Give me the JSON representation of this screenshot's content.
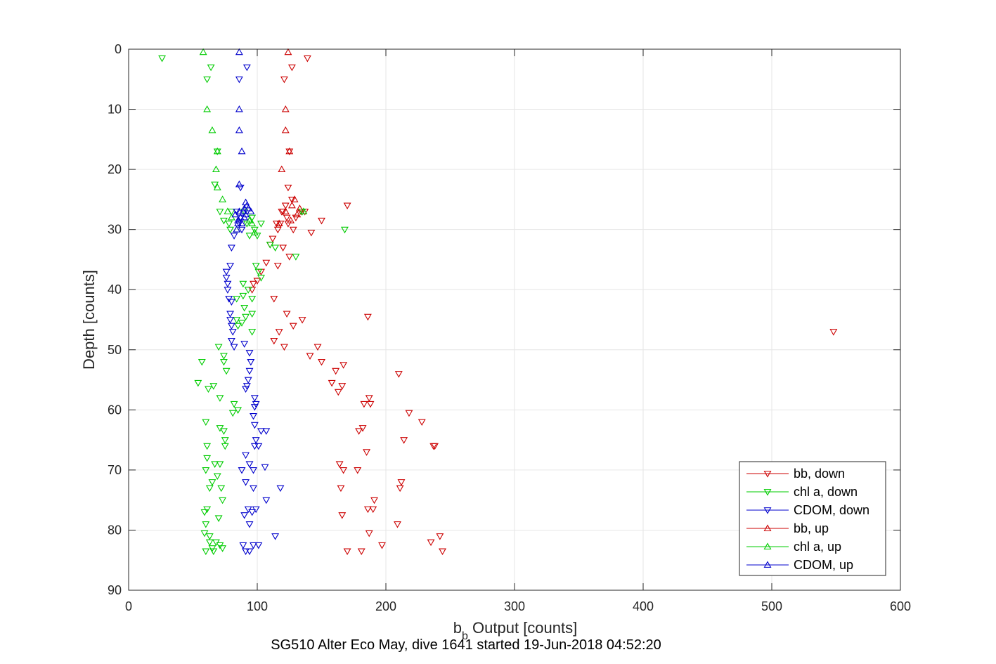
{
  "chart_data": {
    "type": "scatter",
    "title": "SG510 Alter Eco May, dive 1641 started 19-Jun-2018 04:52:20",
    "xlabel_main": "b",
    "xlabel_sub": "b",
    "xlabel_rest": " Output [counts]",
    "ylabel": "Depth [counts]",
    "xlim": [
      0,
      600
    ],
    "ylim": [
      0,
      90
    ],
    "y_reversed": true,
    "xticks": [
      0,
      100,
      200,
      300,
      400,
      500,
      600
    ],
    "yticks": [
      0,
      10,
      20,
      30,
      40,
      50,
      60,
      70,
      80,
      90
    ],
    "grid": true,
    "legend_position": "bottom-right",
    "series": [
      {
        "name": "bb, down",
        "color": "#cc0000",
        "marker": "down",
        "points": [
          [
            139,
            1.5
          ],
          [
            127,
            3
          ],
          [
            121,
            5
          ],
          [
            125,
            17
          ],
          [
            124,
            23
          ],
          [
            170,
            26
          ],
          [
            127,
            25
          ],
          [
            134,
            27
          ],
          [
            137,
            27
          ],
          [
            119,
            27
          ],
          [
            130,
            28
          ],
          [
            123,
            28
          ],
          [
            118,
            29
          ],
          [
            115,
            29
          ],
          [
            116,
            30
          ],
          [
            124,
            29
          ],
          [
            128,
            30
          ],
          [
            142,
            30.5
          ],
          [
            150,
            28.5
          ],
          [
            122,
            26
          ],
          [
            120,
            27
          ],
          [
            112,
            31.5
          ],
          [
            110,
            32.5
          ],
          [
            120,
            33
          ],
          [
            125,
            34.5
          ],
          [
            107,
            35.5
          ],
          [
            116,
            36
          ],
          [
            100,
            38.5
          ],
          [
            103,
            37
          ],
          [
            96,
            40
          ],
          [
            97,
            39
          ],
          [
            113,
            41.5
          ],
          [
            123,
            44
          ],
          [
            135,
            45
          ],
          [
            128,
            46
          ],
          [
            186,
            44.5
          ],
          [
            117,
            47
          ],
          [
            113,
            48.5
          ],
          [
            121,
            49.5
          ],
          [
            147,
            49.5
          ],
          [
            141,
            51
          ],
          [
            150,
            52
          ],
          [
            167,
            52.5
          ],
          [
            210,
            54
          ],
          [
            161,
            53.5
          ],
          [
            158,
            55.5
          ],
          [
            166,
            56
          ],
          [
            163,
            57
          ],
          [
            187,
            58
          ],
          [
            183,
            59
          ],
          [
            188,
            59
          ],
          [
            218,
            60.5
          ],
          [
            228,
            62
          ],
          [
            182,
            63
          ],
          [
            179,
            63.5
          ],
          [
            214,
            65
          ],
          [
            237,
            66
          ],
          [
            238,
            66
          ],
          [
            185,
            67
          ],
          [
            164,
            69
          ],
          [
            167,
            70
          ],
          [
            178,
            70
          ],
          [
            212,
            72
          ],
          [
            211,
            73
          ],
          [
            165,
            73
          ],
          [
            191,
            75
          ],
          [
            190,
            76.5
          ],
          [
            186,
            76.5
          ],
          [
            166,
            77.5
          ],
          [
            209,
            79
          ],
          [
            187,
            80.5
          ],
          [
            242,
            81
          ],
          [
            235,
            82
          ],
          [
            197,
            82.5
          ],
          [
            181,
            83.5
          ],
          [
            170,
            83.5
          ],
          [
            244,
            83.5
          ],
          [
            548,
            47
          ]
        ]
      },
      {
        "name": "chl a, down",
        "color": "#00cc00",
        "marker": "down",
        "points": [
          [
            26,
            1.5
          ],
          [
            64,
            3
          ],
          [
            61,
            5
          ],
          [
            69,
            17
          ],
          [
            67,
            22.5
          ],
          [
            71,
            27
          ],
          [
            74,
            28.5
          ],
          [
            80,
            27
          ],
          [
            78,
            29
          ],
          [
            79,
            30
          ],
          [
            90,
            27
          ],
          [
            96,
            28
          ],
          [
            92,
            29
          ],
          [
            94,
            31
          ],
          [
            98,
            30
          ],
          [
            103,
            29
          ],
          [
            100,
            31
          ],
          [
            110,
            32.5
          ],
          [
            114,
            33
          ],
          [
            130,
            34.5
          ],
          [
            135,
            27
          ],
          [
            168,
            30
          ],
          [
            99,
            36
          ],
          [
            101,
            37
          ],
          [
            103,
            38
          ],
          [
            89,
            39
          ],
          [
            93,
            40
          ],
          [
            84,
            41.5
          ],
          [
            89,
            41
          ],
          [
            96,
            41.5
          ],
          [
            90,
            43
          ],
          [
            96,
            44
          ],
          [
            91,
            44.5
          ],
          [
            84,
            45
          ],
          [
            88,
            45.5
          ],
          [
            85,
            46
          ],
          [
            96,
            47
          ],
          [
            70,
            49.5
          ],
          [
            74,
            51
          ],
          [
            74,
            52
          ],
          [
            76,
            53.5
          ],
          [
            57,
            52
          ],
          [
            54,
            55.5
          ],
          [
            62,
            56.5
          ],
          [
            66,
            56
          ],
          [
            71,
            58
          ],
          [
            82,
            59
          ],
          [
            85,
            60
          ],
          [
            81,
            60.5
          ],
          [
            60,
            62
          ],
          [
            71,
            63
          ],
          [
            74,
            63.5
          ],
          [
            75,
            65
          ],
          [
            75,
            66
          ],
          [
            61,
            66
          ],
          [
            61,
            68
          ],
          [
            67,
            69
          ],
          [
            71,
            69
          ],
          [
            60,
            70
          ],
          [
            69,
            71
          ],
          [
            65,
            72
          ],
          [
            72,
            73
          ],
          [
            63,
            73
          ],
          [
            73,
            75
          ],
          [
            61,
            76.5
          ],
          [
            59,
            77
          ],
          [
            70,
            78
          ],
          [
            60,
            79
          ],
          [
            59,
            80.5
          ],
          [
            63,
            81
          ],
          [
            71,
            82.5
          ],
          [
            65,
            83
          ],
          [
            60,
            83.5
          ],
          [
            66,
            83.5
          ],
          [
            73,
            83
          ],
          [
            68,
            82
          ],
          [
            63,
            82
          ]
        ]
      },
      {
        "name": "CDOM, down",
        "color": "#0000cc",
        "marker": "down",
        "points": [
          [
            92,
            3
          ],
          [
            86,
            5
          ],
          [
            87,
            23
          ],
          [
            84,
            27
          ],
          [
            87,
            28
          ],
          [
            86,
            29
          ],
          [
            88,
            30
          ],
          [
            82,
            31
          ],
          [
            80,
            33
          ],
          [
            79,
            36
          ],
          [
            76,
            37
          ],
          [
            76,
            38
          ],
          [
            77,
            39
          ],
          [
            77,
            40
          ],
          [
            78,
            41.5
          ],
          [
            80,
            42
          ],
          [
            79,
            44
          ],
          [
            79,
            45
          ],
          [
            80,
            46
          ],
          [
            81,
            47
          ],
          [
            80,
            48.5
          ],
          [
            82,
            49.5
          ],
          [
            90,
            49
          ],
          [
            94,
            50.5
          ],
          [
            95,
            52
          ],
          [
            94,
            53.5
          ],
          [
            93,
            55
          ],
          [
            92,
            56
          ],
          [
            91,
            56.5
          ],
          [
            98,
            58
          ],
          [
            98,
            59.5
          ],
          [
            99,
            59
          ],
          [
            97,
            61
          ],
          [
            98,
            62.5
          ],
          [
            103,
            63.5
          ],
          [
            107,
            63.5
          ],
          [
            99,
            65
          ],
          [
            101,
            66
          ],
          [
            98,
            66
          ],
          [
            91,
            67.5
          ],
          [
            94,
            69
          ],
          [
            97,
            70
          ],
          [
            106,
            69.5
          ],
          [
            88,
            70
          ],
          [
            91,
            72
          ],
          [
            97,
            73
          ],
          [
            118,
            73
          ],
          [
            107,
            75
          ],
          [
            99,
            76.5
          ],
          [
            96,
            77
          ],
          [
            93,
            76.5
          ],
          [
            90,
            77.5
          ],
          [
            94,
            79
          ],
          [
            114,
            81
          ],
          [
            97,
            82.5
          ],
          [
            89,
            82.5
          ],
          [
            91,
            83.5
          ],
          [
            94,
            83.5
          ],
          [
            101,
            82.5
          ]
        ]
      },
      {
        "name": "bb, up",
        "color": "#cc0000",
        "marker": "up",
        "points": [
          [
            124,
            0.5
          ],
          [
            122,
            10
          ],
          [
            122,
            13.5
          ],
          [
            125,
            17
          ],
          [
            119,
            20
          ],
          [
            127,
            26
          ],
          [
            129,
            25
          ],
          [
            133,
            26.5
          ],
          [
            131,
            27.5
          ],
          [
            122,
            27
          ],
          [
            126,
            28.5
          ],
          [
            117,
            29
          ]
        ]
      },
      {
        "name": "chl a, up",
        "color": "#00cc00",
        "marker": "up",
        "points": [
          [
            58,
            0.5
          ],
          [
            61,
            10
          ],
          [
            65,
            13.5
          ],
          [
            69,
            17
          ],
          [
            68,
            20
          ],
          [
            69,
            23
          ],
          [
            73,
            25
          ],
          [
            77,
            27
          ],
          [
            80,
            28
          ],
          [
            84,
            30
          ],
          [
            94,
            28.5
          ],
          [
            96,
            29
          ],
          [
            136,
            27
          ],
          [
            98,
            30.5
          ]
        ]
      },
      {
        "name": "CDOM, up",
        "color": "#0000cc",
        "marker": "up",
        "points": [
          [
            86,
            0.5
          ],
          [
            86,
            10
          ],
          [
            86,
            13.5
          ],
          [
            88,
            17
          ],
          [
            86,
            22.5
          ],
          [
            91,
            25.5
          ],
          [
            92,
            26
          ],
          [
            89,
            27
          ],
          [
            90,
            26.5
          ],
          [
            87,
            28
          ],
          [
            85,
            29
          ],
          [
            84,
            30
          ],
          [
            91,
            27.5
          ],
          [
            93,
            26.5
          ],
          [
            85,
            28.5
          ],
          [
            88,
            29
          ],
          [
            90,
            28
          ],
          [
            86,
            27
          ],
          [
            83,
            27.5
          ],
          [
            95,
            27
          ]
        ]
      }
    ]
  }
}
